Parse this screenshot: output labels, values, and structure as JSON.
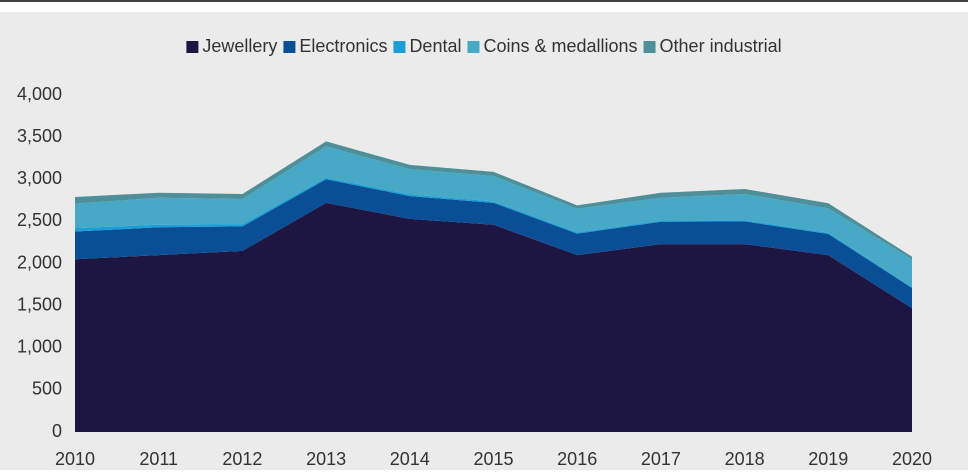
{
  "chart_data": {
    "type": "stacked_area",
    "x": [
      2010,
      2011,
      2012,
      2013,
      2014,
      2015,
      2016,
      2017,
      2018,
      2019,
      2020
    ],
    "xlim": [
      2010,
      2020
    ],
    "xticks": [
      2010,
      2011,
      2012,
      2013,
      2014,
      2015,
      2016,
      2017,
      2018,
      2019,
      2020
    ],
    "ylim": [
      0,
      4000
    ],
    "yticks": [
      0,
      500,
      {
        "value": 1000,
        "label": "1,000"
      },
      {
        "value": 1500,
        "label": "1,500"
      },
      {
        "value": 2000,
        "label": "2,000"
      },
      {
        "value": 2500,
        "label": "2,500"
      },
      {
        "value": 3000,
        "label": "3,000"
      },
      {
        "value": 3500,
        "label": "3,500"
      },
      {
        "value": 4000,
        "label": "4,000"
      }
    ],
    "legend": "top",
    "series": [
      {
        "name": "Jewellery",
        "color": "#1e1642",
        "values": [
          2050,
          2100,
          2150,
          2720,
          2530,
          2460,
          2100,
          2230,
          2230,
          2100,
          1470
        ]
      },
      {
        "name": "Electronics",
        "color": "#0a4f96",
        "values": [
          330,
          330,
          290,
          280,
          270,
          260,
          255,
          265,
          270,
          250,
          240
        ]
      },
      {
        "name": "Dental",
        "color": "#1a9fd9",
        "values": [
          40,
          30,
          25,
          20,
          20,
          18,
          15,
          15,
          15,
          15,
          10
        ]
      },
      {
        "name": "Coins & medallions",
        "color": "#47a9c6",
        "values": [
          290,
          320,
          300,
          370,
          300,
          300,
          280,
          270,
          310,
          290,
          330
        ]
      },
      {
        "name": "Other industrial",
        "color": "#4f8f99",
        "values": [
          80,
          60,
          60,
          60,
          50,
          50,
          40,
          60,
          60,
          60,
          30
        ]
      }
    ]
  }
}
